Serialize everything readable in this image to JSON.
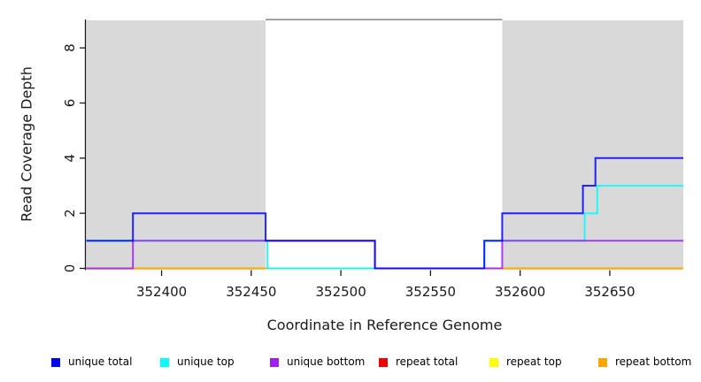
{
  "chart_data": {
    "type": "line",
    "line_style": "step",
    "title": "",
    "xlabel": "Coordinate in Reference Genome",
    "ylabel": "Read Coverage Depth",
    "xlim": [
      352358,
      352691
    ],
    "ylim": [
      0,
      9
    ],
    "xticks": [
      352400,
      352450,
      352500,
      352550,
      352600,
      352650
    ],
    "yticks": [
      0,
      2,
      4,
      6,
      8
    ],
    "grid": false,
    "legend_position": "bottom",
    "axis_color": "#1a1a1a",
    "plot_background": "#ffffff",
    "shaded_regions": [
      {
        "name": "left-shaded-region",
        "x0": 352358,
        "x1": 352458,
        "color": "#d9d9d9"
      },
      {
        "name": "right-shaded-region",
        "x0": 352590,
        "x1": 352691,
        "color": "#d9d9d9"
      }
    ],
    "top_boundary_line": {
      "y": 9,
      "x0": 352458,
      "x1": 352590,
      "color": "#8c8c8c"
    },
    "series": [
      {
        "name": "repeat total",
        "color": "#EE0000",
        "points": [
          [
            352358,
            0
          ],
          [
            352691,
            0
          ]
        ]
      },
      {
        "name": "repeat top",
        "color": "#FFFF00",
        "points": [
          [
            352358,
            0
          ],
          [
            352691,
            0
          ]
        ]
      },
      {
        "name": "repeat bottom",
        "color": "#FFA500",
        "points": [
          [
            352358,
            0
          ],
          [
            352691,
            0
          ]
        ]
      },
      {
        "name": "unique top",
        "color": "#00FFFF",
        "points": [
          [
            352358,
            1
          ],
          [
            352459,
            1
          ],
          [
            352459,
            0
          ],
          [
            352580,
            0
          ],
          [
            352580,
            1
          ],
          [
            352636,
            1
          ],
          [
            352636,
            2
          ],
          [
            352643,
            2
          ],
          [
            352643,
            3
          ],
          [
            352691,
            3
          ]
        ]
      },
      {
        "name": "unique bottom",
        "color": "#A020F0",
        "points": [
          [
            352358,
            0
          ],
          [
            352384,
            0
          ],
          [
            352384,
            1
          ],
          [
            352519,
            1
          ],
          [
            352519,
            0
          ],
          [
            352590,
            0
          ],
          [
            352590,
            1
          ],
          [
            352691,
            1
          ]
        ]
      },
      {
        "name": "unique total",
        "color": "#0000FF",
        "points": [
          [
            352358,
            1
          ],
          [
            352384,
            1
          ],
          [
            352384,
            2
          ],
          [
            352458,
            2
          ],
          [
            352458,
            1
          ],
          [
            352519,
            1
          ],
          [
            352519,
            0
          ],
          [
            352580,
            0
          ],
          [
            352580,
            1
          ],
          [
            352590,
            1
          ],
          [
            352590,
            2
          ],
          [
            352635,
            2
          ],
          [
            352635,
            3
          ],
          [
            352642,
            3
          ],
          [
            352642,
            4
          ],
          [
            352691,
            4
          ]
        ]
      }
    ],
    "legend": {
      "entries": [
        {
          "label": "unique total",
          "color": "#0000EE"
        },
        {
          "label": "unique top",
          "color": "#00FFFF"
        },
        {
          "label": "unique bottom",
          "color": "#A020F0"
        },
        {
          "label": "repeat total",
          "color": "#EE0000"
        },
        {
          "label": "repeat top",
          "color": "#FFFF00"
        },
        {
          "label": "repeat bottom",
          "color": "#FFA500"
        }
      ]
    }
  }
}
